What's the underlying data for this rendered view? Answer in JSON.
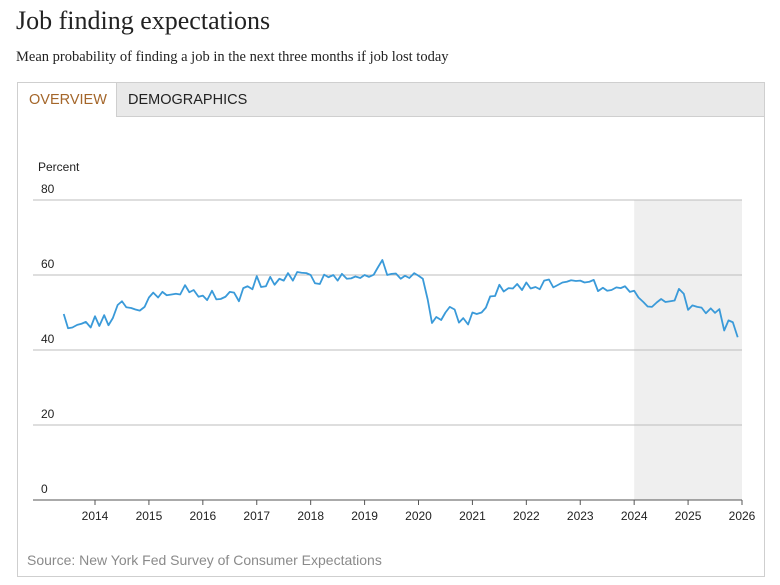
{
  "header": {
    "title": "Job finding expectations",
    "subtitle": "Mean probability of finding a job in the next three months if job lost today"
  },
  "tabs": [
    "OVERVIEW",
    "DEMOGRAPHICS"
  ],
  "chart_data": {
    "type": "line",
    "y_label": "Percent",
    "xlim": [
      2012.85,
      2026
    ],
    "xticks": [
      2014,
      2015,
      2016,
      2017,
      2018,
      2019,
      2020,
      2021,
      2022,
      2023,
      2024,
      2025,
      2026
    ],
    "ylim": [
      0,
      80
    ],
    "yticks": [
      0,
      20,
      40,
      60,
      80
    ],
    "grid": true,
    "shaded_range": [
      2024,
      2026
    ],
    "color": "#3a9ad9",
    "x": [
      2013.42,
      2013.5,
      2013.58,
      2013.67,
      2013.75,
      2013.83,
      2013.92,
      2014,
      2014.08,
      2014.17,
      2014.25,
      2014.33,
      2014.42,
      2014.5,
      2014.58,
      2014.67,
      2014.75,
      2014.83,
      2014.92,
      2015,
      2015.08,
      2015.17,
      2015.25,
      2015.33,
      2015.42,
      2015.5,
      2015.58,
      2015.67,
      2015.75,
      2015.83,
      2015.92,
      2016,
      2016.08,
      2016.17,
      2016.25,
      2016.33,
      2016.42,
      2016.5,
      2016.58,
      2016.67,
      2016.75,
      2016.83,
      2016.92,
      2017,
      2017.08,
      2017.17,
      2017.25,
      2017.33,
      2017.42,
      2017.5,
      2017.58,
      2017.67,
      2017.75,
      2017.83,
      2017.92,
      2018,
      2018.08,
      2018.17,
      2018.25,
      2018.33,
      2018.42,
      2018.5,
      2018.58,
      2018.67,
      2018.75,
      2018.83,
      2018.92,
      2019,
      2019.08,
      2019.17,
      2019.25,
      2019.33,
      2019.42,
      2019.5,
      2019.58,
      2019.67,
      2019.75,
      2019.83,
      2019.92,
      2020,
      2020.08,
      2020.17,
      2020.25,
      2020.33,
      2020.42,
      2020.5,
      2020.58,
      2020.67,
      2020.75,
      2020.83,
      2020.92,
      2021,
      2021.08,
      2021.17,
      2021.25,
      2021.33,
      2021.42,
      2021.5,
      2021.58,
      2021.67,
      2021.75,
      2021.83,
      2021.92,
      2022,
      2022.08,
      2022.17,
      2022.25,
      2022.33,
      2022.42,
      2022.5,
      2022.58,
      2022.67,
      2022.75,
      2022.83,
      2022.92,
      2023,
      2023.08,
      2023.17,
      2023.25,
      2023.33,
      2023.42,
      2023.5,
      2023.58,
      2023.67,
      2023.75,
      2023.83,
      2023.92,
      2024,
      2024.08,
      2024.17,
      2024.25,
      2024.33,
      2024.42,
      2024.5,
      2024.58,
      2024.67,
      2024.75,
      2024.83,
      2024.92,
      2025,
      2025.08,
      2025.17,
      2025.25,
      2025.33,
      2025.42,
      2025.5,
      2025.58,
      2025.67,
      2025.75,
      2025.83,
      2025.92
    ],
    "values": [
      49.6,
      45.8,
      46.0,
      46.7,
      47.0,
      47.5,
      46.0,
      49.0,
      46.4,
      49.3,
      46.6,
      48.5,
      52.0,
      53.0,
      51.4,
      51.2,
      50.8,
      50.5,
      51.5,
      54.0,
      55.3,
      54.0,
      55.5,
      54.6,
      54.8,
      55.0,
      54.8,
      57.3,
      55.4,
      56.0,
      54.2,
      54.5,
      53.3,
      55.8,
      53.5,
      53.6,
      54.2,
      55.5,
      55.3,
      53.0,
      56.5,
      57.0,
      56.2,
      59.7,
      56.8,
      57.0,
      59.5,
      57.4,
      59.0,
      58.5,
      60.5,
      58.5,
      60.8,
      60.6,
      60.5,
      60.0,
      57.8,
      57.6,
      60.1,
      59.4,
      60.0,
      58.5,
      60.3,
      59.0,
      59.1,
      59.6,
      59.2,
      60.0,
      59.5,
      60.1,
      62.1,
      64.0,
      60.0,
      60.3,
      60.4,
      59.0,
      59.8,
      59.2,
      60.5,
      59.8,
      59.0,
      53.5,
      47.2,
      48.8,
      48.0,
      50.0,
      51.5,
      50.8,
      47.3,
      48.5,
      46.8,
      50.0,
      49.6,
      50.0,
      51.3,
      54.3,
      54.4,
      57.4,
      55.6,
      56.5,
      56.4,
      57.6,
      56.0,
      58.0,
      56.4,
      56.8,
      56.2,
      58.5,
      58.8,
      56.7,
      57.3,
      58.0,
      58.2,
      58.6,
      58.4,
      58.5,
      58.0,
      58.2,
      58.7,
      55.7,
      56.6,
      55.8,
      56.0,
      56.7,
      56.5,
      57.0,
      55.5,
      55.8,
      54.0,
      52.8,
      51.6,
      51.5,
      52.7,
      53.6,
      52.8,
      53.0,
      53.2,
      56.3,
      55.0,
      50.7,
      51.9,
      51.5,
      51.3,
      49.8,
      51.1,
      49.9,
      50.9,
      45.2,
      47.9,
      47.4,
      43.4
    ]
  },
  "source": "Source: New York Fed Survey of Consumer Expectations"
}
